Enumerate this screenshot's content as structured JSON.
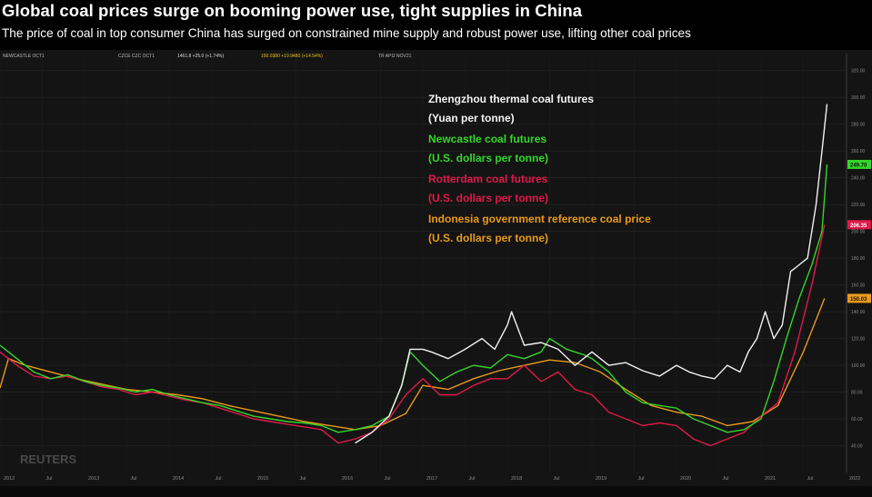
{
  "header": {
    "title": "Global coal prices surge on booming power use, tight supplies in China",
    "subtitle": "The price of coal in top consumer China has surged on constrained mine supply and robust power use, lifting other coal prices"
  },
  "toolbar": {
    "s1": "NEWCASTLE OCT1",
    "s2": "CZCE CZC OCT1",
    "s2val": "1461.8 +25.0 (+1.74%)",
    "s3val": "150.0380 +19.9480 (+14.54%)",
    "s4": "TR API2 NOV21"
  },
  "watermark": "REUTERS",
  "colors": {
    "zhengzhou": "#f2f2f2",
    "newcastle": "#33d62a",
    "rotterdam": "#e0194a",
    "indonesia": "#e89a1a",
    "background": "#141414"
  },
  "chart_data": {
    "type": "line",
    "title": "Global coal prices surge on booming power use, tight supplies in China",
    "subtitle": "The price of coal in top consumer China has surged on constrained mine supply and robust power use, lifting other coal prices",
    "x_labels": [
      "2012",
      "Jul",
      "2013",
      "Jul",
      "2014",
      "Jul",
      "2015",
      "Jul",
      "2016",
      "Jul",
      "2017",
      "Jul",
      "2018",
      "Jul",
      "2019",
      "Jul",
      "2020",
      "Jul",
      "2021",
      "Jul",
      "2022"
    ],
    "y_ticks": [
      40,
      60,
      80,
      100,
      120,
      140,
      160,
      180,
      200,
      220,
      240,
      260,
      280,
      300,
      320
    ],
    "ylim": [
      20,
      330
    ],
    "xlim": [
      2012.0,
      2022.0
    ],
    "right_axis_flags": [
      {
        "series": "Newcastle coal futures",
        "label": "249.70"
      },
      {
        "series": "Rotterdam coal futures",
        "label": "206.35"
      },
      {
        "series": "Indonesia government reference coal price",
        "label": "150.03"
      }
    ],
    "legend_placement": "top-center",
    "series": [
      {
        "name": "Zhengzhou thermal coal futures",
        "unit": "(Yuan per tonne)",
        "color": "#f2f2f2",
        "x": [
          2016.2,
          2016.4,
          2016.6,
          2016.75,
          2016.85,
          2017.0,
          2017.1,
          2017.3,
          2017.5,
          2017.7,
          2017.85,
          2018.0,
          2018.05,
          2018.2,
          2018.4,
          2018.6,
          2018.8,
          2019.0,
          2019.2,
          2019.4,
          2019.6,
          2019.8,
          2020.0,
          2020.15,
          2020.3,
          2020.45,
          2020.6,
          2020.75,
          2020.85,
          2020.95,
          2021.05,
          2021.15,
          2021.25,
          2021.35,
          2021.45,
          2021.55,
          2021.65,
          2021.72,
          2021.78
        ],
        "y": [
          42,
          50,
          62,
          85,
          112,
          112,
          110,
          105,
          112,
          120,
          112,
          130,
          140,
          115,
          117,
          112,
          100,
          110,
          100,
          102,
          96,
          92,
          100,
          95,
          92,
          90,
          100,
          95,
          110,
          120,
          140,
          120,
          130,
          170,
          175,
          180,
          220,
          260,
          295
        ]
      },
      {
        "name": "Newcastle coal futures",
        "unit": "(U.S. dollars per tonne)",
        "color": "#33d62a",
        "x": [
          2012.0,
          2012.2,
          2012.4,
          2012.6,
          2012.8,
          2013.0,
          2013.2,
          2013.4,
          2013.6,
          2013.8,
          2014.0,
          2014.2,
          2014.4,
          2014.6,
          2014.8,
          2015.0,
          2015.2,
          2015.4,
          2015.6,
          2015.8,
          2016.0,
          2016.2,
          2016.4,
          2016.6,
          2016.75,
          2016.85,
          2017.0,
          2017.2,
          2017.4,
          2017.6,
          2017.8,
          2018.0,
          2018.2,
          2018.4,
          2018.5,
          2018.7,
          2018.9,
          2019.0,
          2019.2,
          2019.4,
          2019.6,
          2019.8,
          2020.0,
          2020.2,
          2020.4,
          2020.6,
          2020.8,
          2021.0,
          2021.15,
          2021.3,
          2021.45,
          2021.6,
          2021.72,
          2021.78
        ],
        "y": [
          115,
          105,
          95,
          90,
          93,
          88,
          85,
          83,
          80,
          82,
          78,
          75,
          72,
          70,
          66,
          62,
          60,
          58,
          57,
          55,
          50,
          52,
          55,
          62,
          85,
          110,
          100,
          88,
          95,
          100,
          98,
          108,
          105,
          110,
          120,
          112,
          108,
          105,
          95,
          80,
          72,
          70,
          68,
          60,
          55,
          50,
          52,
          60,
          88,
          120,
          150,
          175,
          200,
          250
        ]
      },
      {
        "name": "Rotterdam coal futures",
        "unit": "(U.S. dollars per tonne)",
        "color": "#e0194a",
        "x": [
          2012.0,
          2012.2,
          2012.4,
          2012.6,
          2012.8,
          2013.0,
          2013.2,
          2013.4,
          2013.6,
          2013.8,
          2014.0,
          2014.2,
          2014.4,
          2014.6,
          2014.8,
          2015.0,
          2015.2,
          2015.4,
          2015.6,
          2015.8,
          2016.0,
          2016.2,
          2016.4,
          2016.6,
          2016.8,
          2017.0,
          2017.2,
          2017.4,
          2017.6,
          2017.8,
          2018.0,
          2018.2,
          2018.4,
          2018.6,
          2018.8,
          2019.0,
          2019.2,
          2019.4,
          2019.6,
          2019.8,
          2020.0,
          2020.2,
          2020.4,
          2020.6,
          2020.8,
          2021.0,
          2021.2,
          2021.4,
          2021.6,
          2021.75
        ],
        "y": [
          110,
          100,
          92,
          90,
          92,
          88,
          84,
          82,
          78,
          80,
          77,
          74,
          72,
          68,
          64,
          60,
          58,
          56,
          54,
          52,
          42,
          45,
          50,
          60,
          78,
          90,
          78,
          78,
          85,
          90,
          90,
          100,
          88,
          95,
          82,
          78,
          65,
          60,
          55,
          57,
          55,
          45,
          40,
          45,
          50,
          62,
          72,
          110,
          160,
          205
        ]
      },
      {
        "name": "Indonesia government reference coal price",
        "unit": "(U.S. dollars per tonne)",
        "color": "#e89a1a",
        "x": [
          2012.0,
          2012.1,
          2012.3,
          2012.6,
          2012.9,
          2013.2,
          2013.5,
          2013.8,
          2014.1,
          2014.4,
          2014.7,
          2015.0,
          2015.3,
          2015.6,
          2015.9,
          2016.2,
          2016.5,
          2016.8,
          2017.0,
          2017.3,
          2017.6,
          2017.9,
          2018.2,
          2018.5,
          2018.8,
          2019.1,
          2019.4,
          2019.7,
          2020.0,
          2020.3,
          2020.6,
          2020.9,
          2021.2,
          2021.5,
          2021.75
        ],
        "y": [
          83,
          105,
          100,
          95,
          90,
          86,
          82,
          80,
          78,
          75,
          70,
          66,
          62,
          58,
          55,
          52,
          55,
          64,
          85,
          82,
          90,
          96,
          100,
          104,
          102,
          95,
          82,
          70,
          65,
          62,
          55,
          58,
          70,
          110,
          150
        ]
      }
    ]
  }
}
